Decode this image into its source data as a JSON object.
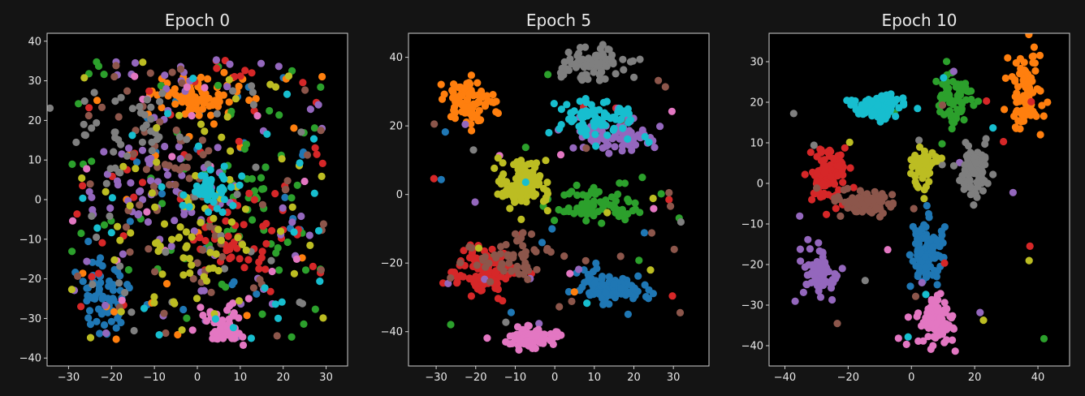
{
  "colors": {
    "background": "#000000",
    "frame": "#141414",
    "axis": "#cfcfcf",
    "text": "#e8e8e8",
    "palette": [
      "#1f77b4",
      "#ff7f0e",
      "#2ca02c",
      "#d62728",
      "#9467bd",
      "#8c564b",
      "#e377c2",
      "#7f7f7f",
      "#bcbd22",
      "#17becf"
    ]
  },
  "chart_data": [
    {
      "type": "scatter",
      "title": "Epoch 0",
      "xlim": [
        -35,
        35
      ],
      "ylim": [
        -42,
        42
      ],
      "xticks": [
        -30,
        -20,
        -10,
        0,
        10,
        20,
        30
      ],
      "yticks": [
        -40,
        -30,
        -20,
        -10,
        0,
        10,
        20,
        30,
        40
      ],
      "clusters": [
        {
          "class": 0,
          "cx": -22,
          "cy": -25,
          "sx": 6,
          "sy": 8,
          "n": 85,
          "noise": 0.25
        },
        {
          "class": 1,
          "cx": 0,
          "cy": 26,
          "sx": 8,
          "sy": 4,
          "n": 110,
          "noise": 0.15
        },
        {
          "class": 2,
          "cx": 10,
          "cy": 0,
          "sx": 12,
          "sy": 14,
          "n": 80,
          "noise": 0.6
        },
        {
          "class": 3,
          "cx": 10,
          "cy": -10,
          "sx": 12,
          "sy": 10,
          "n": 90,
          "noise": 0.4
        },
        {
          "class": 4,
          "cx": -8,
          "cy": 3,
          "sx": 14,
          "sy": 14,
          "n": 100,
          "noise": 0.5
        },
        {
          "class": 5,
          "cx": -5,
          "cy": 5,
          "sx": 12,
          "sy": 14,
          "n": 80,
          "noise": 0.6
        },
        {
          "class": 6,
          "cx": 6,
          "cy": -32,
          "sx": 5,
          "sy": 5,
          "n": 75,
          "noise": 0.2
        },
        {
          "class": 7,
          "cx": -15,
          "cy": 18,
          "sx": 12,
          "sy": 10,
          "n": 75,
          "noise": 0.5
        },
        {
          "class": 8,
          "cx": 0,
          "cy": -10,
          "sx": 13,
          "sy": 14,
          "n": 90,
          "noise": 0.6
        },
        {
          "class": 9,
          "cx": 3,
          "cy": 3,
          "sx": 5,
          "sy": 5,
          "n": 70,
          "noise": 0.4
        }
      ]
    },
    {
      "type": "scatter",
      "title": "Epoch 5",
      "xlim": [
        -37,
        39
      ],
      "ylim": [
        -50,
        47
      ],
      "xticks": [
        -30,
        -20,
        -10,
        0,
        10,
        20,
        30
      ],
      "yticks": [
        -40,
        -20,
        0,
        20,
        40
      ],
      "clusters": [
        {
          "class": 0,
          "cx": 15,
          "cy": -27,
          "sx": 8,
          "sy": 4,
          "n": 110,
          "noise": 0.05
        },
        {
          "class": 1,
          "cx": -22,
          "cy": 27,
          "sx": 7,
          "sy": 6,
          "n": 85,
          "noise": 0.03
        },
        {
          "class": 2,
          "cx": 12,
          "cy": -3,
          "sx": 9,
          "sy": 5,
          "n": 85,
          "noise": 0.06
        },
        {
          "class": 3,
          "cx": -18,
          "cy": -22,
          "sx": 7,
          "sy": 6,
          "n": 110,
          "noise": 0.05
        },
        {
          "class": 4,
          "cx": 15,
          "cy": 17,
          "sx": 9,
          "sy": 5,
          "n": 95,
          "noise": 0.08
        },
        {
          "class": 5,
          "cx": -10,
          "cy": -18,
          "sx": 10,
          "sy": 6,
          "n": 70,
          "noise": 0.25
        },
        {
          "class": 6,
          "cx": -6,
          "cy": -42,
          "sx": 6,
          "sy": 3,
          "n": 75,
          "noise": 0.04
        },
        {
          "class": 7,
          "cx": 10,
          "cy": 38,
          "sx": 9,
          "sy": 4,
          "n": 90,
          "noise": 0.04
        },
        {
          "class": 8,
          "cx": -8,
          "cy": 3,
          "sx": 6,
          "sy": 7,
          "n": 110,
          "noise": 0.03
        },
        {
          "class": 9,
          "cx": 12,
          "cy": 22,
          "sx": 9,
          "sy": 5,
          "n": 80,
          "noise": 0.05
        }
      ]
    },
    {
      "type": "scatter",
      "title": "Epoch 10",
      "xlim": [
        -45,
        50
      ],
      "ylim": [
        -45,
        37
      ],
      "xticks": [
        -40,
        -20,
        0,
        20,
        40
      ],
      "yticks": [
        -40,
        -30,
        -20,
        -10,
        0,
        10,
        20,
        30
      ],
      "clusters": [
        {
          "class": 0,
          "cx": 5,
          "cy": -17,
          "sx": 5,
          "sy": 7,
          "n": 110,
          "noise": 0.02
        },
        {
          "class": 1,
          "cx": 36,
          "cy": 22,
          "sx": 5,
          "sy": 10,
          "n": 90,
          "noise": 0.02
        },
        {
          "class": 2,
          "cx": 13,
          "cy": 21,
          "sx": 6,
          "sy": 7,
          "n": 75,
          "noise": 0.04
        },
        {
          "class": 3,
          "cx": -27,
          "cy": 2,
          "sx": 5,
          "sy": 6,
          "n": 110,
          "noise": 0.03
        },
        {
          "class": 4,
          "cx": -29,
          "cy": -22,
          "sx": 5,
          "sy": 6,
          "n": 85,
          "noise": 0.05
        },
        {
          "class": 5,
          "cx": -14,
          "cy": -5,
          "sx": 8,
          "sy": 3,
          "n": 80,
          "noise": 0.08
        },
        {
          "class": 6,
          "cx": 8,
          "cy": -34,
          "sx": 5,
          "sy": 5,
          "n": 100,
          "noise": 0.02
        },
        {
          "class": 7,
          "cx": 20,
          "cy": 3,
          "sx": 5,
          "sy": 6,
          "n": 85,
          "noise": 0.05
        },
        {
          "class": 8,
          "cx": 4,
          "cy": 4,
          "sx": 4,
          "sy": 4,
          "n": 70,
          "noise": 0.05
        },
        {
          "class": 9,
          "cx": -10,
          "cy": 19,
          "sx": 7,
          "sy": 3,
          "n": 95,
          "noise": 0.03
        }
      ]
    }
  ]
}
